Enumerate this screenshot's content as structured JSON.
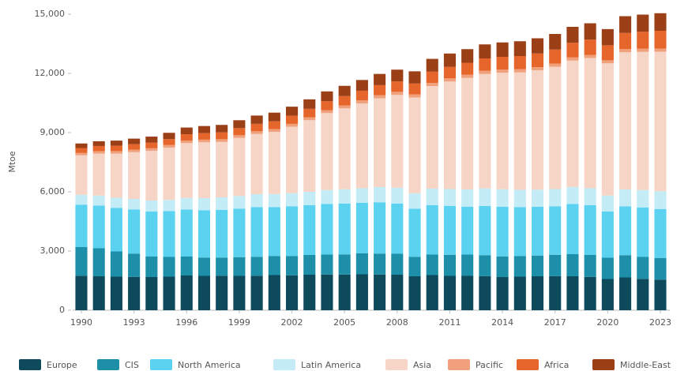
{
  "chart_data": {
    "type": "stacked-bar",
    "y_label": "Mtoe",
    "categories": [
      "1990",
      null,
      null,
      "1993",
      null,
      null,
      "1996",
      null,
      null,
      "1999",
      null,
      null,
      "2002",
      null,
      null,
      "2005",
      null,
      null,
      "2008",
      null,
      null,
      "2011",
      null,
      null,
      "2014",
      null,
      null,
      "2017",
      null,
      null,
      "2020",
      null,
      null,
      "2023"
    ],
    "ylim": [
      0,
      15000
    ],
    "yticks": [
      0,
      {
        "value": 3000,
        "label": "3,000"
      },
      {
        "value": 6000,
        "label": "6,000"
      },
      {
        "value": 9000,
        "label": "9,000"
      },
      {
        "value": 12000,
        "label": "12,000"
      },
      {
        "value": 15000,
        "label": "15,000"
      }
    ],
    "grid": false,
    "legend": "bottom",
    "series": [
      {
        "name": "Europe",
        "color": "#0d4a5c",
        "values": [
          1750,
          1720,
          1700,
          1690,
          1680,
          1700,
          1760,
          1740,
          1750,
          1740,
          1750,
          1780,
          1770,
          1800,
          1810,
          1810,
          1820,
          1810,
          1800,
          1720,
          1780,
          1740,
          1740,
          1730,
          1680,
          1700,
          1720,
          1730,
          1720,
          1690,
          1580,
          1660,
          1590,
          1550
        ]
      },
      {
        "name": "CIS",
        "color": "#1d8fa8",
        "values": [
          1450,
          1420,
          1280,
          1180,
          1040,
          1000,
          960,
          930,
          920,
          950,
          960,
          970,
          980,
          1000,
          1010,
          1020,
          1060,
          1060,
          1060,
          990,
          1040,
          1070,
          1080,
          1060,
          1050,
          1040,
          1050,
          1080,
          1120,
          1110,
          1080,
          1130,
          1110,
          1100
        ]
      },
      {
        "name": "North America",
        "color": "#5bd2f0",
        "values": [
          2150,
          2160,
          2200,
          2240,
          2290,
          2320,
          2380,
          2400,
          2420,
          2460,
          2520,
          2480,
          2520,
          2530,
          2570,
          2580,
          2560,
          2600,
          2550,
          2430,
          2510,
          2480,
          2430,
          2490,
          2510,
          2480,
          2470,
          2460,
          2550,
          2520,
          2350,
          2470,
          2510,
          2480
        ]
      },
      {
        "name": "Latin America",
        "color": "#c4ecf7",
        "values": [
          500,
          510,
          520,
          530,
          550,
          570,
          590,
          610,
          630,
          640,
          650,
          660,
          660,
          670,
          700,
          720,
          740,
          770,
          800,
          790,
          830,
          850,
          870,
          890,
          890,
          880,
          870,
          870,
          860,
          860,
          800,
          860,
          880,
          900
        ]
      },
      {
        "name": "Asia",
        "color": "#f7d5c6",
        "values": [
          2000,
          2130,
          2240,
          2370,
          2520,
          2650,
          2780,
          2830,
          2810,
          2940,
          3050,
          3150,
          3370,
          3630,
          3900,
          4100,
          4300,
          4500,
          4700,
          4850,
          5200,
          5450,
          5650,
          5800,
          5900,
          5950,
          6050,
          6200,
          6400,
          6600,
          6700,
          6950,
          7000,
          7070
        ]
      },
      {
        "name": "Pacific",
        "color": "#f0a07a",
        "values": [
          120,
          122,
          124,
          126,
          128,
          130,
          132,
          134,
          136,
          138,
          140,
          142,
          144,
          146,
          148,
          150,
          152,
          154,
          156,
          156,
          158,
          158,
          160,
          160,
          160,
          160,
          160,
          160,
          160,
          160,
          155,
          160,
          160,
          160
        ]
      },
      {
        "name": "Africa",
        "color": "#e5652b",
        "values": [
          250,
          260,
          270,
          280,
          290,
          300,
          315,
          330,
          345,
          360,
          375,
          390,
          410,
          430,
          450,
          470,
          490,
          510,
          530,
          550,
          570,
          590,
          610,
          630,
          650,
          670,
          690,
          710,
          740,
          770,
          760,
          820,
          860,
          900
        ]
      },
      {
        "name": "Middle-East",
        "color": "#9b3f17",
        "values": [
          230,
          240,
          260,
          280,
          300,
          320,
          340,
          360,
          380,
          400,
          420,
          440,
          460,
          480,
          500,
          520,
          545,
          570,
          595,
          620,
          650,
          670,
          690,
          710,
          730,
          750,
          770,
          790,
          810,
          830,
          820,
          850,
          870,
          890
        ]
      }
    ]
  }
}
